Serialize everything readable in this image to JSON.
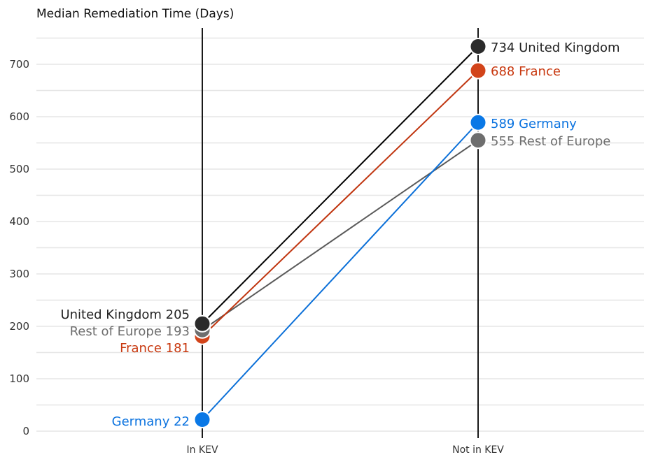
{
  "chart_data": {
    "type": "line",
    "subtype": "slope",
    "title": "Median Remediation Time (Days)",
    "xlabel": "",
    "ylabel": "",
    "categories": [
      "In KEV",
      "Not in KEV"
    ],
    "ylim": [
      0,
      750
    ],
    "yticks": [
      0,
      100,
      200,
      300,
      400,
      500,
      600,
      700
    ],
    "minor_grid_step": 50,
    "grid": true,
    "legend": "none (direct labels)",
    "series": [
      {
        "name": "United Kingdom",
        "values": [
          205,
          734
        ],
        "color": "#2b2b2b",
        "line_color": "#000000"
      },
      {
        "name": "Rest of Europe",
        "values": [
          193,
          555
        ],
        "color": "#6e6e6e",
        "line_color": "#5a5a5a"
      },
      {
        "name": "France",
        "values": [
          181,
          688
        ],
        "color": "#d2441a",
        "line_color": "#c0350f"
      },
      {
        "name": "Germany",
        "values": [
          22,
          589
        ],
        "color": "#0a78e6",
        "line_color": "#0a6fd8"
      }
    ],
    "left_labels": [
      {
        "text": "United Kingdom 205",
        "color": "#222222"
      },
      {
        "text": "Rest of Europe 193",
        "color": "#6e6e6e"
      },
      {
        "text": "France 181",
        "color": "#c8380f"
      },
      {
        "text": "Germany 22",
        "color": "#0a72df"
      }
    ],
    "right_labels": [
      {
        "text": "734 United Kingdom",
        "color": "#222222"
      },
      {
        "text": "688 France",
        "color": "#c8380f"
      },
      {
        "text": "589 Germany",
        "color": "#0a72df"
      },
      {
        "text": "555 Rest of Europe",
        "color": "#6e6e6e"
      }
    ]
  }
}
